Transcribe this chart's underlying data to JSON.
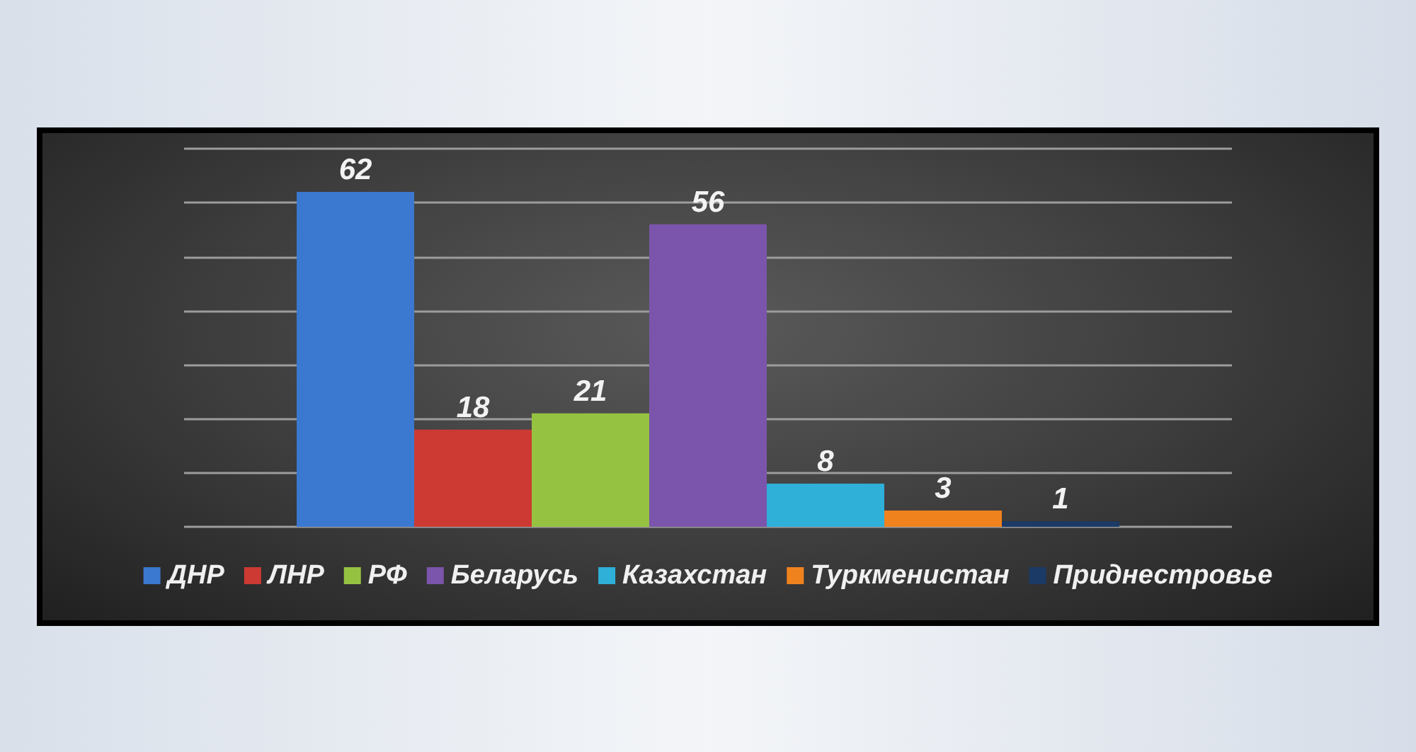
{
  "chart_data": {
    "type": "bar",
    "categories": [
      null
    ],
    "series": [
      {
        "name": "ДНР",
        "color": "#3b78cf",
        "values": [
          62
        ]
      },
      {
        "name": "ЛНР",
        "color": "#cc3a33",
        "values": [
          18
        ]
      },
      {
        "name": "РФ",
        "color": "#96c242",
        "values": [
          21
        ]
      },
      {
        "name": "Беларусь",
        "color": "#7b55ab",
        "values": [
          56
        ]
      },
      {
        "name": "Казахстан",
        "color": "#2fb0d8",
        "values": [
          8
        ]
      },
      {
        "name": "Туркменистан",
        "color": "#f0821e",
        "values": [
          3
        ]
      },
      {
        "name": "Приднестровье",
        "color": "#1b3a66",
        "values": [
          1
        ]
      }
    ],
    "ylim": [
      0,
      70
    ],
    "yticks": [
      {
        "value": 0,
        "label": null
      },
      {
        "value": 10,
        "label": null
      },
      {
        "value": 20,
        "label": null
      },
      {
        "value": 30,
        "label": null
      },
      {
        "value": 40,
        "label": null
      },
      {
        "value": 50,
        "label": null
      },
      {
        "value": 60,
        "label": null
      },
      {
        "value": 70,
        "label": null
      }
    ],
    "grid": "y",
    "legend": "bottom",
    "data_labels": true
  }
}
